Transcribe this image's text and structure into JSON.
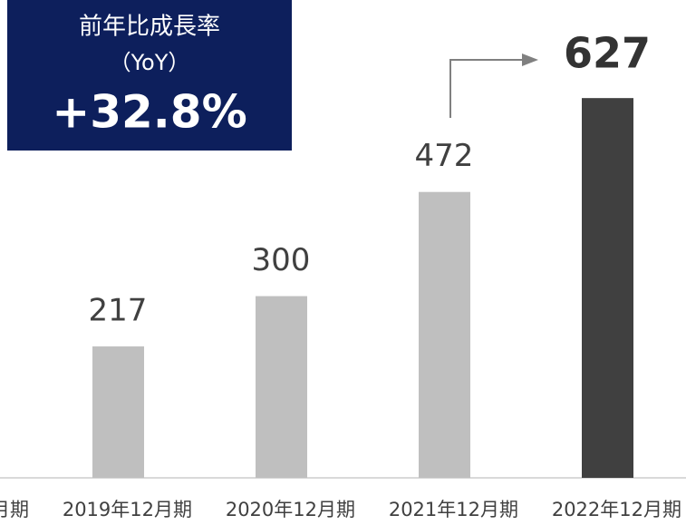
{
  "chart_data": {
    "type": "bar",
    "categories": [
      "月期",
      "2019年12月期",
      "2020年12月期",
      "2021年12月期",
      "2022年12月期"
    ],
    "values": [
      null,
      217,
      300,
      472,
      627
    ],
    "colors": [
      "#bfbfbf",
      "#bfbfbf",
      "#bfbfbf",
      "#bfbfbf",
      "#404040"
    ],
    "annotation": {
      "title": "前年比成長率",
      "subtitle": "（YoY）",
      "value": "+32.8%"
    }
  }
}
